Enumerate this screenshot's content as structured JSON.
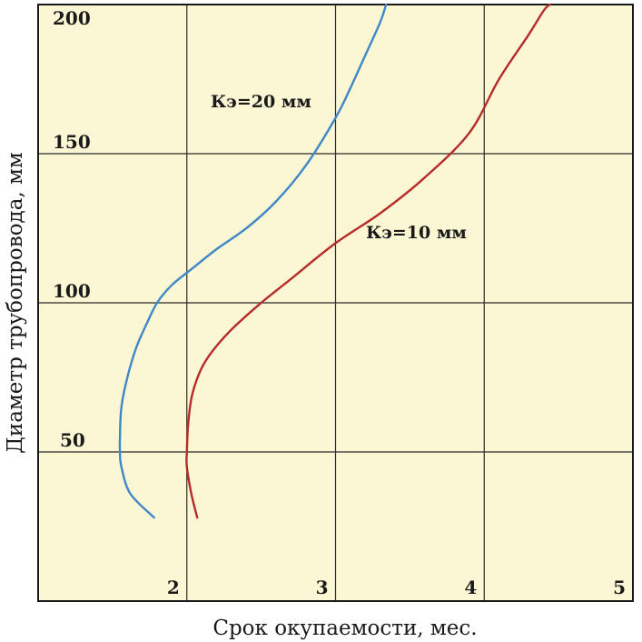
{
  "chart_data": {
    "type": "line",
    "xlabel": "Срок окупаемости, мес.",
    "ylabel": "Диаметр трубопровода, мм",
    "xlim": [
      1,
      5
    ],
    "ylim": [
      0,
      200
    ],
    "x_ticks": [
      "2",
      "3",
      "4",
      "5"
    ],
    "y_ticks": [
      "50",
      "100",
      "150",
      "200"
    ],
    "grid": true,
    "background_color": "#fbf6d3",
    "series": [
      {
        "name": "Кэ=20 мм",
        "color": "#3f87c8",
        "points": [
          [
            1.78,
            28
          ],
          [
            1.62,
            36
          ],
          [
            1.56,
            45
          ],
          [
            1.55,
            50
          ],
          [
            1.55,
            55
          ],
          [
            1.56,
            65
          ],
          [
            1.6,
            75
          ],
          [
            1.66,
            85
          ],
          [
            1.73,
            93
          ],
          [
            1.8,
            100
          ],
          [
            1.9,
            106
          ],
          [
            2.05,
            112
          ],
          [
            2.2,
            118
          ],
          [
            2.4,
            125
          ],
          [
            2.6,
            134
          ],
          [
            2.8,
            146
          ],
          [
            3.0,
            162
          ],
          [
            3.1,
            172
          ],
          [
            3.2,
            183
          ],
          [
            3.3,
            194
          ],
          [
            3.34,
            200
          ]
        ]
      },
      {
        "name": "Кэ=10 мм",
        "color": "#b82b2b",
        "points": [
          [
            2.07,
            28
          ],
          [
            2.03,
            36
          ],
          [
            2.0,
            45
          ],
          [
            2.0,
            50
          ],
          [
            2.01,
            60
          ],
          [
            2.04,
            70
          ],
          [
            2.12,
            80
          ],
          [
            2.28,
            90
          ],
          [
            2.5,
            100
          ],
          [
            2.7,
            108
          ],
          [
            3.0,
            120
          ],
          [
            3.3,
            130
          ],
          [
            3.6,
            142
          ],
          [
            3.9,
            157
          ],
          [
            4.1,
            175
          ],
          [
            4.3,
            190
          ],
          [
            4.4,
            198
          ],
          [
            4.44,
            200
          ]
        ]
      }
    ]
  }
}
